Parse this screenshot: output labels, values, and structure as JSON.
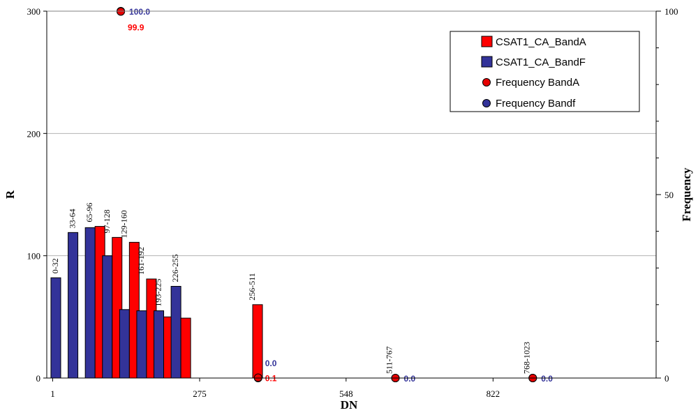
{
  "chart_data": {
    "type": "bar",
    "title": "",
    "xlabel": "DN",
    "ylabel": "R",
    "y2label": "Frequency",
    "xlim": [
      -10,
      1126
    ],
    "x_ticks": [
      1,
      275,
      548,
      822
    ],
    "ylim": [
      0,
      300
    ],
    "y_ticks": [
      0,
      100,
      200,
      300
    ],
    "y2lim": [
      0,
      100
    ],
    "y2_ticks": [
      0,
      50,
      100
    ],
    "grid": true,
    "legend_position": "top-right",
    "colors": {
      "bandA": "#ff0000",
      "bandF": "#333399",
      "freqA": "#e60000",
      "freqF": "#333399",
      "freqA_label": "#ff0000",
      "freqF_label": "#333399"
    },
    "bar_groups": [
      {
        "label": "0-32",
        "x": 16,
        "bandA": null,
        "bandF": 82
      },
      {
        "label": "33-64",
        "x": 48,
        "bandA": null,
        "bandF": 119
      },
      {
        "label": "65-96",
        "x": 80,
        "bandA": 124,
        "bandF": 123
      },
      {
        "label": "97-128",
        "x": 112,
        "bandA": 115,
        "bandF": 100
      },
      {
        "label": "129-160",
        "x": 144,
        "bandA": 111,
        "bandF": 56
      },
      {
        "label": "161-192",
        "x": 176,
        "bandA": 81,
        "bandF": 55
      },
      {
        "label": "193-225",
        "x": 208,
        "bandA": 50,
        "bandF": 55
      },
      {
        "label": "226-255",
        "x": 240,
        "bandA": 49,
        "bandF": 75
      },
      {
        "label": "256-511",
        "x": 383,
        "bandA": 60,
        "bandF": null
      },
      {
        "label": "511-767",
        "x": 639,
        "bandA": null,
        "bandF": null
      },
      {
        "label": "768-1023",
        "x": 895,
        "bandA": null,
        "bandF": null
      }
    ],
    "series": [
      {
        "name": "CSAT1_CA_BandA",
        "kind": "bar",
        "key": "bandA"
      },
      {
        "name": "CSAT1_CA_BandF",
        "kind": "bar",
        "key": "bandF"
      },
      {
        "name": "Frequency BandA",
        "kind": "scatter",
        "points": [
          {
            "x": 128,
            "y": 99.9,
            "label": "99.9"
          },
          {
            "x": 384,
            "y": 0.1,
            "label": "0.1"
          },
          {
            "x": 640,
            "y": 0.0
          },
          {
            "x": 896,
            "y": 0.0
          }
        ]
      },
      {
        "name": "Frequency Bandf",
        "kind": "scatter",
        "points": [
          {
            "x": 128,
            "y": 100.0,
            "label": "100.0"
          },
          {
            "x": 384,
            "y": 0.0,
            "label": "0.0"
          },
          {
            "x": 640,
            "y": 0.0,
            "label": "0.0"
          },
          {
            "x": 896,
            "y": 0.0,
            "label": "0.0"
          }
        ]
      }
    ]
  }
}
